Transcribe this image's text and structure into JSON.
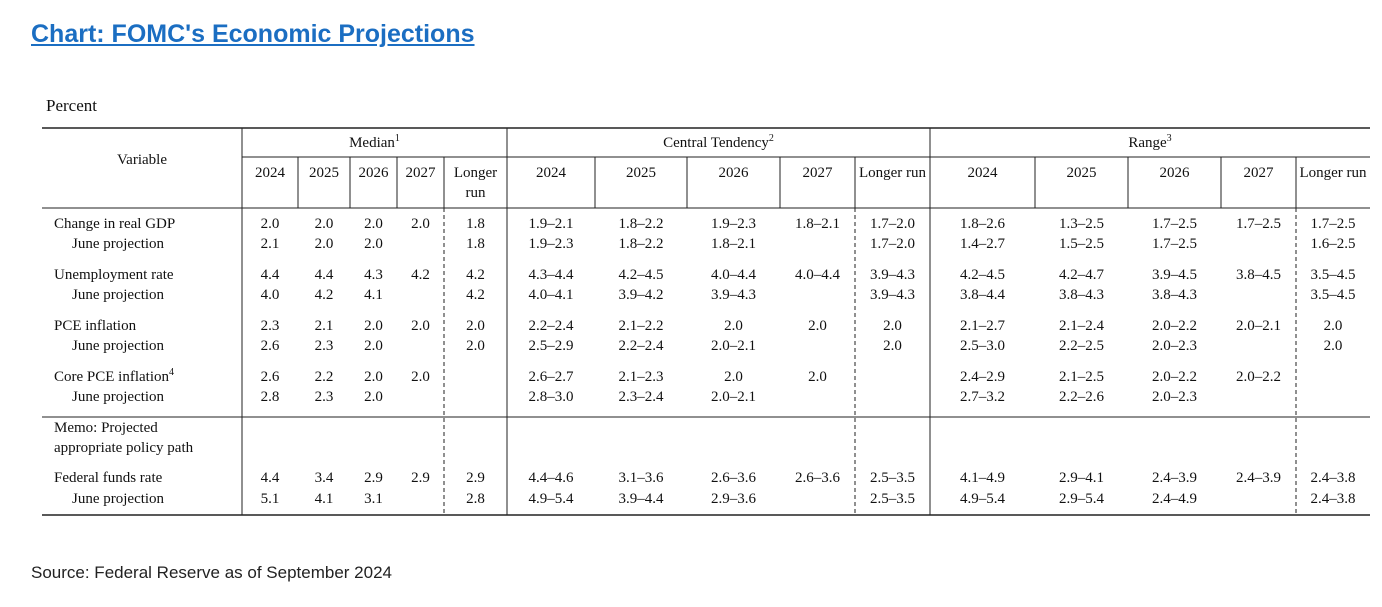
{
  "title": "Chart: FOMC's Economic Projections",
  "unit": "Percent",
  "table": {
    "row_header": "Variable",
    "groups": [
      {
        "label": "Median",
        "note": "1",
        "columns": [
          "2024",
          "2025",
          "2026",
          "2027",
          "Longer run"
        ]
      },
      {
        "label": "Central Tendency",
        "note": "2",
        "columns": [
          "2024",
          "2025",
          "2026",
          "2027",
          "Longer run"
        ]
      },
      {
        "label": "Range",
        "note": "3",
        "columns": [
          "2024",
          "2025",
          "2026",
          "2027",
          "Longer run"
        ]
      }
    ],
    "rows": [
      {
        "label": "Change in real GDP",
        "values": [
          "2.0",
          "2.0",
          "2.0",
          "2.0",
          "1.8",
          "1.9–2.1",
          "1.8–2.2",
          "1.9–2.3",
          "1.8–2.1",
          "1.7–2.0",
          "1.8–2.6",
          "1.3–2.5",
          "1.7–2.5",
          "1.7–2.5",
          "1.7–2.5"
        ]
      },
      {
        "label": "June projection",
        "values": [
          "2.1",
          "2.0",
          "2.0",
          null,
          "1.8",
          "1.9–2.3",
          "1.8–2.2",
          "1.8–2.1",
          null,
          "1.7–2.0",
          "1.4–2.7",
          "1.5–2.5",
          "1.7–2.5",
          null,
          "1.6–2.5"
        ]
      },
      {
        "label": "Unemployment rate",
        "values": [
          "4.4",
          "4.4",
          "4.3",
          "4.2",
          "4.2",
          "4.3–4.4",
          "4.2–4.5",
          "4.0–4.4",
          "4.0–4.4",
          "3.9–4.3",
          "4.2–4.5",
          "4.2–4.7",
          "3.9–4.5",
          "3.8–4.5",
          "3.5–4.5"
        ]
      },
      {
        "label": "June projection",
        "values": [
          "4.0",
          "4.2",
          "4.1",
          null,
          "4.2",
          "4.0–4.1",
          "3.9–4.2",
          "3.9–4.3",
          null,
          "3.9–4.3",
          "3.8–4.4",
          "3.8–4.3",
          "3.8–4.3",
          null,
          "3.5–4.5"
        ]
      },
      {
        "label": "PCE inflation",
        "values": [
          "2.3",
          "2.1",
          "2.0",
          "2.0",
          "2.0",
          "2.2–2.4",
          "2.1–2.2",
          "2.0",
          "2.0",
          "2.0",
          "2.1–2.7",
          "2.1–2.4",
          "2.0–2.2",
          "2.0–2.1",
          "2.0"
        ]
      },
      {
        "label": "June projection",
        "values": [
          "2.6",
          "2.3",
          "2.0",
          null,
          "2.0",
          "2.5–2.9",
          "2.2–2.4",
          "2.0–2.1",
          null,
          "2.0",
          "2.5–3.0",
          "2.2–2.5",
          "2.0–2.3",
          null,
          "2.0"
        ]
      },
      {
        "label": "Core PCE inflation",
        "note": "4",
        "values": [
          "2.6",
          "2.2",
          "2.0",
          "2.0",
          null,
          "2.6–2.7",
          "2.1–2.3",
          "2.0",
          "2.0",
          null,
          "2.4–2.9",
          "2.1–2.5",
          "2.0–2.2",
          "2.0–2.2",
          null
        ]
      },
      {
        "label": "June projection",
        "values": [
          "2.8",
          "2.3",
          "2.0",
          null,
          null,
          "2.8–3.0",
          "2.3–2.4",
          "2.0–2.1",
          null,
          null,
          "2.7–3.2",
          "2.2–2.6",
          "2.0–2.3",
          null,
          null
        ]
      },
      {
        "label": "Memo: Projected appropriate policy path"
      },
      {
        "label": "Federal funds rate",
        "values": [
          "4.4",
          "3.4",
          "2.9",
          "2.9",
          "2.9",
          "4.4–4.6",
          "3.1–3.6",
          "2.6–3.6",
          "2.6–3.6",
          "2.5–3.5",
          "4.1–4.9",
          "2.9–4.1",
          "2.4–3.9",
          "2.4–3.9",
          "2.4–3.8"
        ]
      },
      {
        "label": "June projection",
        "values": [
          "5.1",
          "4.1",
          "3.1",
          null,
          "2.8",
          "4.9–5.4",
          "3.9–4.4",
          "2.9–3.6",
          null,
          "2.5–3.5",
          "4.9–5.4",
          "2.9–5.4",
          "2.4–4.9",
          null,
          "2.4–3.8"
        ]
      }
    ]
  },
  "source": "Source: Federal Reserve as of September 2024"
}
